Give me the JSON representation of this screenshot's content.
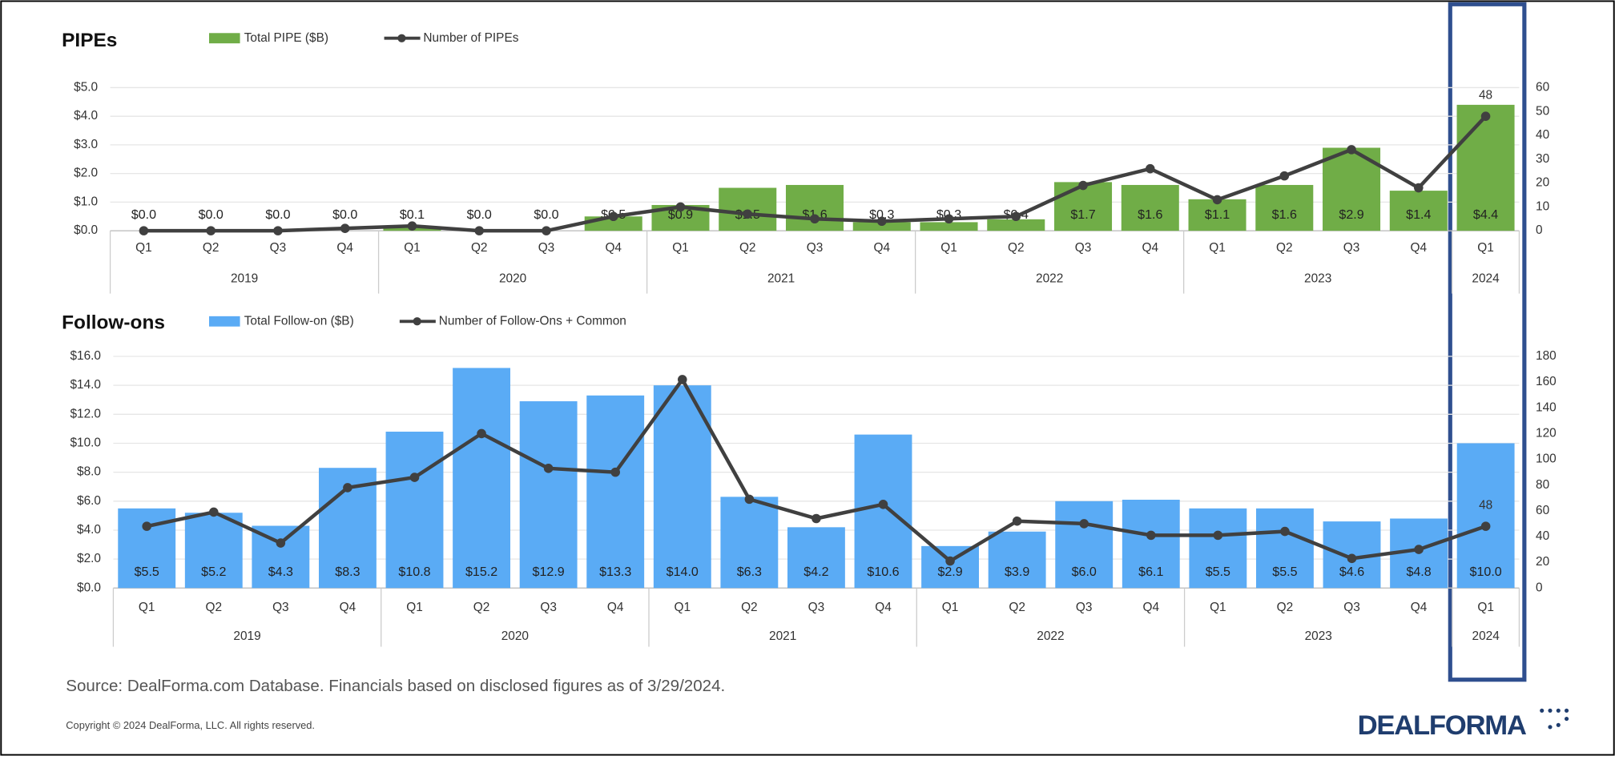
{
  "chart_data": [
    {
      "type": "bar_line",
      "title": "PIPEs",
      "categories": [
        "Q1",
        "Q2",
        "Q3",
        "Q4",
        "Q1",
        "Q2",
        "Q3",
        "Q4",
        "Q1",
        "Q2",
        "Q3",
        "Q4",
        "Q1",
        "Q2",
        "Q3",
        "Q4",
        "Q1",
        "Q2",
        "Q3",
        "Q4",
        "Q1"
      ],
      "category_groups": [
        {
          "label": "2019",
          "span": 4
        },
        {
          "label": "2020",
          "span": 4
        },
        {
          "label": "2021",
          "span": 4
        },
        {
          "label": "2022",
          "span": 4
        },
        {
          "label": "2023",
          "span": 4
        },
        {
          "label": "2024",
          "span": 1
        }
      ],
      "series": [
        {
          "name": "Total PIPE ($B)",
          "type": "bar",
          "color": "#70ad47",
          "values": [
            0.0,
            0.0,
            0.0,
            0.0,
            0.1,
            0.0,
            0.0,
            0.5,
            0.9,
            1.5,
            1.6,
            0.3,
            0.3,
            0.4,
            1.7,
            1.6,
            1.1,
            1.6,
            2.9,
            1.4,
            4.4
          ],
          "value_labels": [
            "$0.0",
            "$0.0",
            "$0.0",
            "$0.0",
            "$0.1",
            "$0.0",
            "$0.0",
            "$0.5",
            "$0.9",
            "$1.5",
            "$1.6",
            "$0.3",
            "$0.3",
            "$0.4",
            "$1.7",
            "$1.6",
            "$1.1",
            "$1.6",
            "$2.9",
            "$1.4",
            "$4.4"
          ]
        },
        {
          "name": "Number of PIPEs",
          "type": "line",
          "axis": "y2",
          "color": "#404040",
          "label_last": true,
          "values": [
            0,
            0,
            0,
            1,
            2,
            0,
            0,
            6,
            10,
            7,
            5,
            4,
            5,
            6,
            19,
            26,
            13,
            23,
            34,
            18,
            48
          ]
        }
      ],
      "ylim": [
        0,
        5
      ],
      "yticks": [
        {
          "value": 0,
          "label": "$0.0"
        },
        {
          "value": 1,
          "label": "$1.0"
        },
        {
          "value": 2,
          "label": "$2.0"
        },
        {
          "value": 3,
          "label": "$3.0"
        },
        {
          "value": 4,
          "label": "$4.0"
        },
        {
          "value": 5,
          "label": "$5.0"
        }
      ],
      "y2lim": [
        0,
        60
      ],
      "y2ticks": [
        0,
        10,
        20,
        30,
        40,
        50,
        60
      ]
    },
    {
      "type": "bar_line",
      "title": "Follow-ons",
      "categories": [
        "Q1",
        "Q2",
        "Q3",
        "Q4",
        "Q1",
        "Q2",
        "Q3",
        "Q4",
        "Q1",
        "Q2",
        "Q3",
        "Q4",
        "Q1",
        "Q2",
        "Q3",
        "Q4",
        "Q1",
        "Q2",
        "Q3",
        "Q4",
        "Q1"
      ],
      "category_groups": [
        {
          "label": "2019",
          "span": 4
        },
        {
          "label": "2020",
          "span": 4
        },
        {
          "label": "2021",
          "span": 4
        },
        {
          "label": "2022",
          "span": 4
        },
        {
          "label": "2023",
          "span": 4
        },
        {
          "label": "2024",
          "span": 1
        }
      ],
      "series": [
        {
          "name": "Total Follow-on ($B)",
          "type": "bar",
          "color": "#5aabf5",
          "values": [
            5.5,
            5.2,
            4.3,
            8.3,
            10.8,
            15.2,
            12.9,
            13.3,
            14.0,
            6.3,
            4.2,
            10.6,
            2.9,
            3.9,
            6.0,
            6.1,
            5.5,
            5.5,
            4.6,
            4.8,
            10.0
          ],
          "value_labels": [
            "$5.5",
            "$5.2",
            "$4.3",
            "$8.3",
            "$10.8",
            "$15.2",
            "$12.9",
            "$13.3",
            "$14.0",
            "$6.3",
            "$4.2",
            "$10.6",
            "$2.9",
            "$3.9",
            "$6.0",
            "$6.1",
            "$5.5",
            "$5.5",
            "$4.6",
            "$4.8",
            "$10.0"
          ]
        },
        {
          "name": "Number of Follow-Ons + Common",
          "type": "line",
          "axis": "y2",
          "color": "#404040",
          "label_last": true,
          "values": [
            48,
            59,
            35,
            78,
            86,
            120,
            93,
            90,
            162,
            69,
            54,
            65,
            21,
            52,
            50,
            41,
            41,
            44,
            23,
            30,
            48
          ]
        }
      ],
      "ylim": [
        0,
        16
      ],
      "yticks": [
        {
          "value": 0,
          "label": "$0.0"
        },
        {
          "value": 2,
          "label": "$2.0"
        },
        {
          "value": 4,
          "label": "$4.0"
        },
        {
          "value": 6,
          "label": "$6.0"
        },
        {
          "value": 8,
          "label": "$8.0"
        },
        {
          "value": 10,
          "label": "$10.0"
        },
        {
          "value": 12,
          "label": "$12.0"
        },
        {
          "value": 14,
          "label": "$14.0"
        },
        {
          "value": 16,
          "label": "$16.0"
        }
      ],
      "y2lim": [
        0,
        180
      ],
      "y2ticks": [
        0,
        20,
        40,
        60,
        80,
        100,
        120,
        140,
        160,
        180
      ]
    }
  ],
  "source": "Source: DealForma.com Database. Financials based on disclosed figures as of 3/29/2024.",
  "copyright": "Copyright © 2024 DealForma, LLC. All rights reserved.",
  "logo": "DEALFORMA"
}
